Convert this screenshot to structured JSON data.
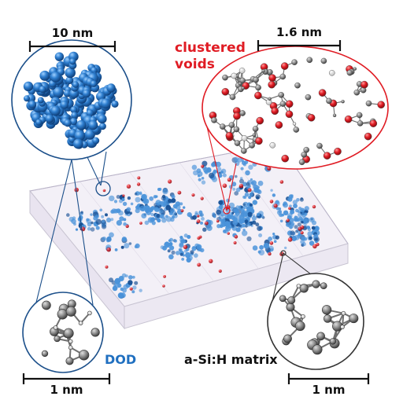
{
  "labels": {
    "scale_dod_cluster": "10 nm",
    "scale_voids": "1.6 nm",
    "scale_dod_atoms": "1 nm",
    "scale_matrix_atoms": "1 nm",
    "voids_line1": "clustered",
    "voids_line2": "voids",
    "dod": "DOD",
    "matrix": "a-Si:H matrix"
  },
  "colors": {
    "dod_blue": "#2f7fd0",
    "dod_dark": "#164f94",
    "void_red": "#e01c24",
    "atom_gray": "#8a8a8a",
    "circle_blue": "#1b4f8a"
  }
}
